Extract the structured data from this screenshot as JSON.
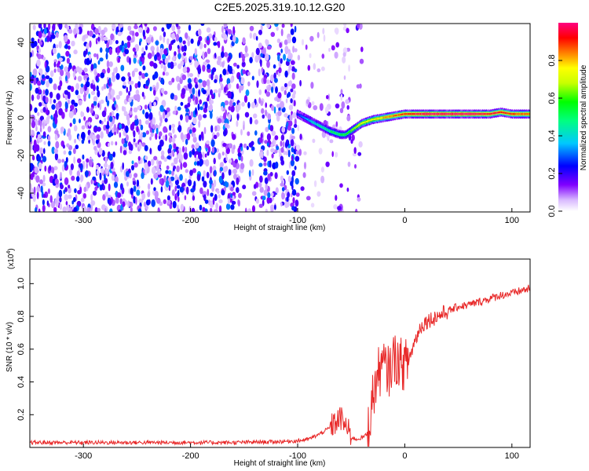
{
  "title": "C2E5.2025.319.10.12.G20",
  "chart_data": [
    {
      "type": "heatmap",
      "title": "C2E5.2025.319.10.12.G20",
      "xlabel": "Height of straight line (km)",
      "ylabel": "Frequency (Hz)",
      "xlim": [
        -350,
        117
      ],
      "ylim": [
        -50,
        50
      ],
      "xticks": [
        -300,
        -200,
        -100,
        0,
        100
      ],
      "yticks": [
        -40,
        -20,
        0,
        20,
        40
      ],
      "ridge": {
        "description": "high-amplitude frequency track",
        "x": [
          -100,
          -90,
          -80,
          -70,
          -60,
          -55,
          -50,
          -45,
          -40,
          -30,
          -20,
          -10,
          0,
          10,
          20,
          40,
          60,
          80,
          90,
          100,
          117
        ],
        "freq": [
          2,
          -1,
          -4,
          -7,
          -9,
          -9,
          -7,
          -5,
          -3,
          -1,
          0,
          1,
          2,
          2,
          2,
          2,
          2,
          2,
          3,
          2,
          2
        ],
        "amplitude": [
          0.25,
          0.35,
          0.45,
          0.5,
          0.55,
          0.55,
          0.6,
          0.7,
          0.75,
          0.75,
          0.8,
          0.85,
          0.9,
          0.95,
          1.0,
          1.0,
          1.0,
          0.95,
          0.95,
          0.9,
          0.85
        ]
      },
      "noise_region_x": [
        -350,
        -60
      ],
      "colorbar": {
        "label": "Normalized spectral amplitude",
        "ticks": [
          "0.0",
          "0.2",
          "0.4",
          "0.6",
          "0.8"
        ],
        "range": [
          0,
          1
        ],
        "colors": [
          "#ffffff",
          "#8000ff",
          "#0000ff",
          "#00ffff",
          "#00ff00",
          "#ffff00",
          "#ff8000",
          "#ff0000",
          "#ff00ff"
        ]
      }
    },
    {
      "type": "line",
      "xlabel": "Height of straight line (km)",
      "ylabel": "SNR (10 * v/v)",
      "scale_label": "(x10",
      "scale_exponent": "4",
      "xlim": [
        -350,
        117
      ],
      "ylim": [
        0,
        1.15
      ],
      "xticks": [
        -300,
        -200,
        -100,
        0,
        100
      ],
      "yticks": [
        0.2,
        0.4,
        0.6,
        0.8,
        1.0
      ],
      "color": "#e82828",
      "series": [
        {
          "name": "SNR",
          "x": [
            -350,
            -300,
            -250,
            -200,
            -160,
            -120,
            -100,
            -90,
            -80,
            -70,
            -65,
            -60,
            -55,
            -50,
            -45,
            -40,
            -35,
            -30,
            -25,
            -20,
            -15,
            -10,
            -5,
            0,
            5,
            10,
            15,
            20,
            30,
            40,
            50,
            60,
            70,
            80,
            90,
            100,
            110,
            117
          ],
          "y": [
            0.03,
            0.03,
            0.03,
            0.03,
            0.03,
            0.035,
            0.04,
            0.05,
            0.08,
            0.12,
            0.15,
            0.18,
            0.13,
            0.06,
            0.05,
            0.06,
            0.08,
            0.3,
            0.45,
            0.5,
            0.46,
            0.55,
            0.52,
            0.5,
            0.56,
            0.66,
            0.74,
            0.77,
            0.8,
            0.83,
            0.86,
            0.87,
            0.89,
            0.91,
            0.93,
            0.94,
            0.96,
            0.97
          ]
        }
      ]
    }
  ]
}
